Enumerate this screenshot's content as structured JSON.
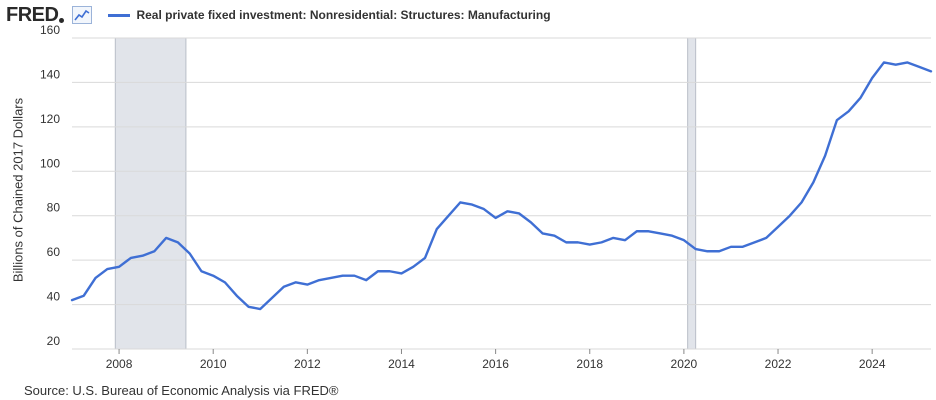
{
  "header": {
    "logo_text": "FRED",
    "logo_icon": "line-chart-icon",
    "legend_label": "Real private fixed investment: Nonresidential: Structures: Manufacturing"
  },
  "source": "Source: U.S. Bureau of Economic Analysis via FRED®",
  "colors": {
    "series": "#3f6fd4",
    "grid": "#d9d9d9",
    "recession": "#e1e4ea"
  },
  "chart_data": {
    "type": "line",
    "title": "",
    "xlabel": "",
    "ylabel": "Billions of Chained 2017 Dollars",
    "xlim": [
      2007.0,
      2025.25
    ],
    "ylim": [
      20,
      160
    ],
    "yticks": [
      20,
      40,
      60,
      80,
      100,
      120,
      140,
      160
    ],
    "xticks": [
      2008,
      2010,
      2012,
      2014,
      2016,
      2018,
      2020,
      2022,
      2024
    ],
    "grid": true,
    "legend": "top",
    "recessions": [
      [
        2007.92,
        2009.42
      ],
      [
        2020.08,
        2020.25
      ]
    ],
    "series": [
      {
        "name": "Real private fixed investment: Nonresidential: Structures: Manufacturing",
        "x": [
          2007.0,
          2007.25,
          2007.5,
          2007.75,
          2008.0,
          2008.25,
          2008.5,
          2008.75,
          2009.0,
          2009.25,
          2009.5,
          2009.75,
          2010.0,
          2010.25,
          2010.5,
          2010.75,
          2011.0,
          2011.25,
          2011.5,
          2011.75,
          2012.0,
          2012.25,
          2012.5,
          2012.75,
          2013.0,
          2013.25,
          2013.5,
          2013.75,
          2014.0,
          2014.25,
          2014.5,
          2014.75,
          2015.0,
          2015.25,
          2015.5,
          2015.75,
          2016.0,
          2016.25,
          2016.5,
          2016.75,
          2017.0,
          2017.25,
          2017.5,
          2017.75,
          2018.0,
          2018.25,
          2018.5,
          2018.75,
          2019.0,
          2019.25,
          2019.5,
          2019.75,
          2020.0,
          2020.25,
          2020.5,
          2020.75,
          2021.0,
          2021.25,
          2021.5,
          2021.75,
          2022.0,
          2022.25,
          2022.5,
          2022.75,
          2023.0,
          2023.25,
          2023.5,
          2023.75,
          2024.0,
          2024.25,
          2024.5,
          2024.75,
          2025.0,
          2025.25
        ],
        "values": [
          42,
          44,
          52,
          56,
          57,
          61,
          62,
          64,
          70,
          68,
          63,
          55,
          53,
          50,
          44,
          39,
          38,
          43,
          48,
          50,
          49,
          51,
          52,
          53,
          53,
          51,
          55,
          55,
          54,
          57,
          61,
          74,
          80,
          86,
          85,
          83,
          79,
          82,
          81,
          77,
          72,
          71,
          68,
          68,
          67,
          68,
          70,
          69,
          73,
          73,
          72,
          71,
          69,
          65,
          64,
          64,
          66,
          66,
          68,
          70,
          75,
          80,
          86,
          95,
          107,
          123,
          127,
          133,
          142,
          149,
          148,
          149,
          147,
          145
        ]
      }
    ]
  }
}
